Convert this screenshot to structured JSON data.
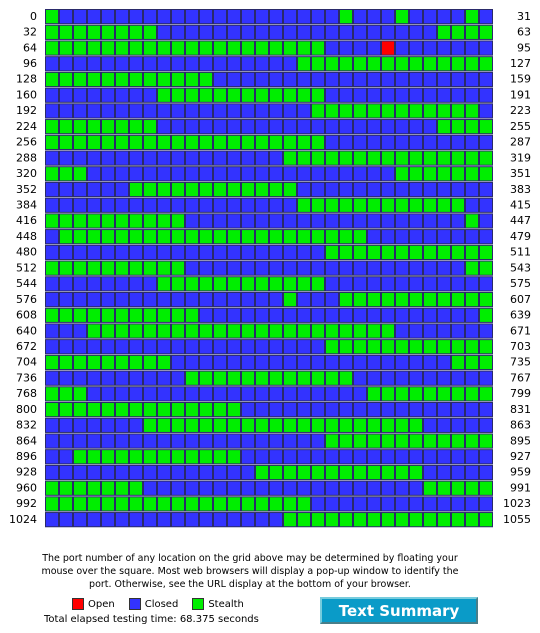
{
  "grid": {
    "rows": [
      {
        "start": 0,
        "end": 31,
        "cells": "G1B20G1B3G1B4G1B1"
      },
      {
        "start": 32,
        "end": 63,
        "cells": "G8B20G4"
      },
      {
        "start": 64,
        "end": 95,
        "cells": "G20B4R1B7"
      },
      {
        "start": 96,
        "end": 127,
        "cells": "B18G14"
      },
      {
        "start": 128,
        "end": 159,
        "cells": "G12B20"
      },
      {
        "start": 160,
        "end": 191,
        "cells": "B8G12B12"
      },
      {
        "start": 192,
        "end": 223,
        "cells": "B19G12B1"
      },
      {
        "start": 224,
        "end": 255,
        "cells": "G8B20G4"
      },
      {
        "start": 256,
        "end": 287,
        "cells": "G20B12"
      },
      {
        "start": 288,
        "end": 319,
        "cells": "B17G15"
      },
      {
        "start": 320,
        "end": 351,
        "cells": "G3B22G7"
      },
      {
        "start": 352,
        "end": 383,
        "cells": "B6G12B14"
      },
      {
        "start": 384,
        "end": 415,
        "cells": "B18G12B2"
      },
      {
        "start": 416,
        "end": 447,
        "cells": "G10B20G1B1"
      },
      {
        "start": 448,
        "end": 479,
        "cells": "B1G22B9"
      },
      {
        "start": 480,
        "end": 511,
        "cells": "B20G12"
      },
      {
        "start": 512,
        "end": 543,
        "cells": "G10B20G2"
      },
      {
        "start": 544,
        "end": 575,
        "cells": "B8G12B12"
      },
      {
        "start": 576,
        "end": 607,
        "cells": "B17G1B3G11"
      },
      {
        "start": 608,
        "end": 639,
        "cells": "G11B20G1"
      },
      {
        "start": 640,
        "end": 671,
        "cells": "B3G22B7"
      },
      {
        "start": 672,
        "end": 703,
        "cells": "B20G12"
      },
      {
        "start": 704,
        "end": 735,
        "cells": "G9B20G3"
      },
      {
        "start": 736,
        "end": 767,
        "cells": "B10G12B10"
      },
      {
        "start": 768,
        "end": 799,
        "cells": "G3B20G9"
      },
      {
        "start": 800,
        "end": 831,
        "cells": "G14B18"
      },
      {
        "start": 832,
        "end": 863,
        "cells": "B7G20B5"
      },
      {
        "start": 864,
        "end": 895,
        "cells": "B20G12"
      },
      {
        "start": 896,
        "end": 927,
        "cells": "B2G12B18"
      },
      {
        "start": 928,
        "end": 959,
        "cells": "B15G12B5"
      },
      {
        "start": 960,
        "end": 991,
        "cells": "G7B20G5"
      },
      {
        "start": 992,
        "end": 1023,
        "cells": "G19B13"
      },
      {
        "start": 1024,
        "end": 1055,
        "cells": "B17G15"
      }
    ]
  },
  "caption": "The port number of any location on the grid above may be determined by floating your mouse over the square. Most web browsers will display a pop-up window to identify the port. Otherwise, see the URL display at the bottom of your browser.",
  "legend": [
    {
      "label": "Open",
      "code": "R",
      "color": "#ff0000"
    },
    {
      "label": "Closed",
      "code": "B",
      "color": "#3333ff"
    },
    {
      "label": "Stealth",
      "code": "G",
      "color": "#00ee00"
    }
  ],
  "elapsed": "Total elapsed testing time: 68.375 seconds",
  "button": "Text Summary"
}
